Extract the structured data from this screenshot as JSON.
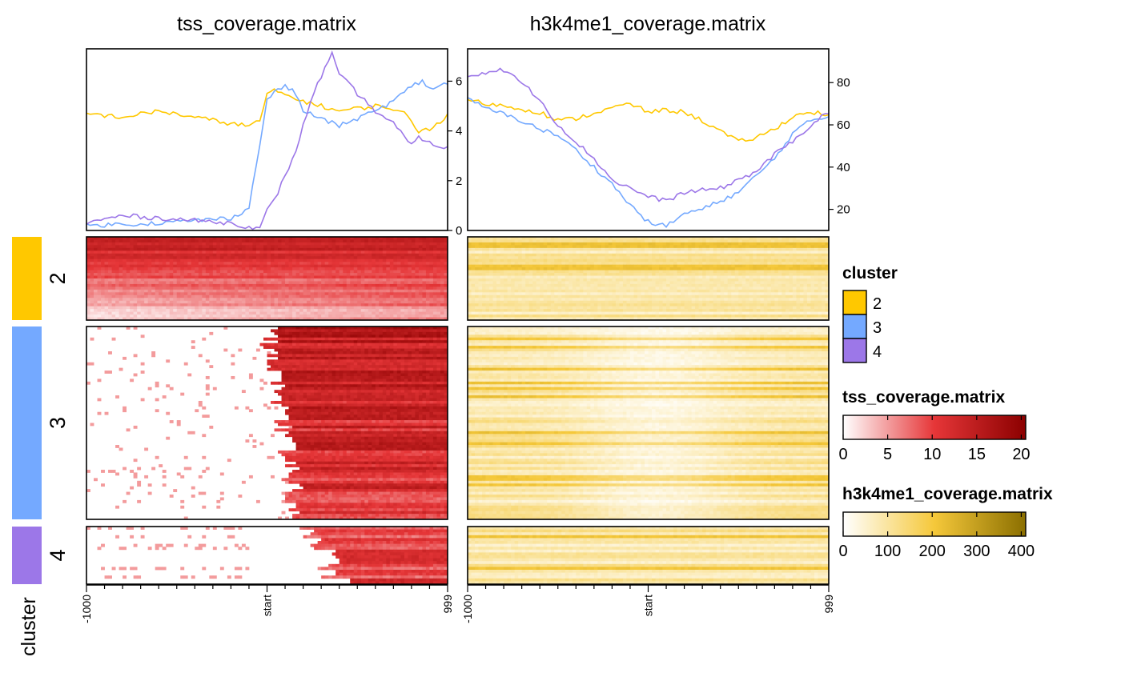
{
  "chart_data": {
    "type": "heatmap",
    "cluster_annotation": {
      "name": "cluster",
      "clusters": [
        {
          "id": "2",
          "color": "#FFC800",
          "rows": 30
        },
        {
          "id": "3",
          "color": "#74A9FF",
          "rows": 70
        },
        {
          "id": "4",
          "color": "#9C77E8",
          "rows": 20
        }
      ]
    },
    "x_axis": {
      "tick_labels": [
        "-1000",
        "start",
        "999"
      ],
      "bins": 100
    },
    "panels": [
      {
        "title": "tss_coverage.matrix",
        "palette": [
          "#FFFFFF",
          "#E63638",
          "#8B0000"
        ],
        "profile_axis": {
          "ticks": [
            0,
            2,
            4,
            6
          ],
          "ylim": [
            0,
            7.3
          ]
        },
        "profiles": [
          {
            "cluster": "2",
            "x": [
              0,
              10,
              20,
              30,
              40,
              45,
              48,
              50,
              52,
              60,
              70,
              80,
              85,
              88,
              92,
              95,
              100
            ],
            "y": [
              4.7,
              4.55,
              4.8,
              4.55,
              4.3,
              4.2,
              4.4,
              5.5,
              5.6,
              5.2,
              4.8,
              5.0,
              4.9,
              4.7,
              4.0,
              4.1,
              4.6
            ]
          },
          {
            "cluster": "3",
            "x": [
              0,
              10,
              20,
              30,
              40,
              45,
              48,
              50,
              52,
              55,
              58,
              60,
              65,
              70,
              80,
              85,
              90,
              93,
              95,
              100
            ],
            "y": [
              0.2,
              0.25,
              0.3,
              0.4,
              0.5,
              0.9,
              3.5,
              5.2,
              5.6,
              5.8,
              5.5,
              4.8,
              4.5,
              4.2,
              4.8,
              5.2,
              5.8,
              6.0,
              5.7,
              5.9
            ]
          },
          {
            "cluster": "4",
            "x": [
              0,
              10,
              20,
              30,
              40,
              48,
              50,
              52,
              55,
              58,
              60,
              62,
              65,
              68,
              70,
              72,
              75,
              80,
              85,
              90,
              92,
              95,
              100
            ],
            "y": [
              0.3,
              0.6,
              0.5,
              0.4,
              0.3,
              0.05,
              0.8,
              1.2,
              2.2,
              3.2,
              4.2,
              5.2,
              6.2,
              7.1,
              6.2,
              6.0,
              5.5,
              4.8,
              4.3,
              3.4,
              3.8,
              3.5,
              3.3
            ]
          }
        ]
      },
      {
        "title": "h3k4me1_coverage.matrix",
        "palette": [
          "#FFFFFF",
          "#F5C83A",
          "#8B6F00"
        ],
        "profile_axis": {
          "ticks": [
            20,
            40,
            60,
            80
          ],
          "ylim": [
            10,
            96
          ]
        },
        "profiles": [
          {
            "cluster": "2",
            "x": [
              0,
              5,
              10,
              20,
              25,
              30,
              40,
              45,
              50,
              55,
              60,
              65,
              70,
              75,
              80,
              85,
              90,
              95,
              100
            ],
            "y": [
              72,
              70,
              69,
              66,
              62,
              63,
              68,
              70,
              66,
              67,
              66,
              62,
              57,
              52,
              54,
              58,
              64,
              66,
              65
            ]
          },
          {
            "cluster": "3",
            "x": [
              0,
              5,
              10,
              15,
              20,
              25,
              30,
              35,
              40,
              45,
              50,
              55,
              60,
              65,
              70,
              75,
              80,
              85,
              90,
              95,
              100
            ],
            "y": [
              72,
              68,
              65,
              62,
              58,
              55,
              48,
              40,
              32,
              22,
              14,
              12,
              18,
              20,
              24,
              28,
              36,
              44,
              56,
              62,
              64
            ]
          },
          {
            "cluster": "4",
            "x": [
              0,
              5,
              10,
              15,
              20,
              25,
              30,
              35,
              40,
              45,
              50,
              55,
              60,
              65,
              70,
              75,
              80,
              85,
              90,
              95,
              100
            ],
            "y": [
              83,
              85,
              86,
              80,
              72,
              60,
              52,
              44,
              34,
              30,
              26,
              24,
              28,
              29,
              30,
              34,
              38,
              46,
              52,
              60,
              66
            ]
          }
        ]
      }
    ],
    "legends": [
      {
        "title": "cluster",
        "type": "discrete",
        "entries": [
          {
            "label": "2",
            "color": "#FFC800"
          },
          {
            "label": "3",
            "color": "#74A9FF"
          },
          {
            "label": "4",
            "color": "#9C77E8"
          }
        ]
      },
      {
        "title": "tss_coverage.matrix",
        "type": "continuous",
        "ticks": [
          "0",
          "5",
          "10",
          "15",
          "20"
        ],
        "range": [
          0,
          20.5
        ],
        "palette": [
          "#FFFFFF",
          "#E63638",
          "#8B0000"
        ]
      },
      {
        "title": "h3k4me1_coverage.matrix",
        "type": "continuous",
        "ticks": [
          "0",
          "100",
          "200",
          "300",
          "400"
        ],
        "range": [
          0,
          410
        ],
        "palette": [
          "#FFFFFF",
          "#F5C83A",
          "#8B6F00"
        ]
      }
    ],
    "row_annotation_label": "cluster"
  }
}
